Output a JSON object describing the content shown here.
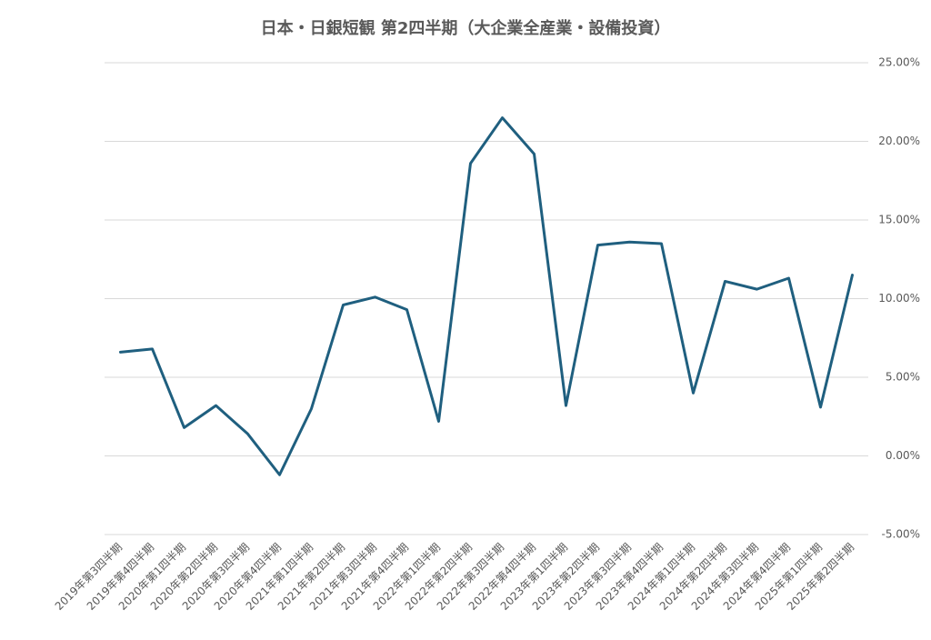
{
  "chart_data": {
    "type": "line",
    "title": "日本・日銀短観  第2四半期（大企業全産業・設備投資）",
    "categories": [
      "2019年第3四半期",
      "2019年第4四半期",
      "2020年第1四半期",
      "2020年第2四半期",
      "2020年第3四半期",
      "2020年第4四半期",
      "2021年第1四半期",
      "2021年第2四半期",
      "2021年第3四半期",
      "2021年第4四半期",
      "2022年第1四半期",
      "2022年第2四半期",
      "2022年第3四半期",
      "2022年第4四半期",
      "2023年第1四半期",
      "2023年第2四半期",
      "2023年第3四半期",
      "2023年第4四半期",
      "2024年第1四半期",
      "2024年第2四半期",
      "2024年第3四半期",
      "2024年第4四半期",
      "2025年第1四半期",
      "2025年第2四半期"
    ],
    "series": [
      {
        "color": "#1f5f7f",
        "values": [
          6.6,
          6.8,
          1.8,
          3.2,
          1.4,
          -1.2,
          3.0,
          9.6,
          10.1,
          9.3,
          2.2,
          18.6,
          21.5,
          19.2,
          3.2,
          13.4,
          13.6,
          13.5,
          4.0,
          11.1,
          10.6,
          11.3,
          3.1,
          11.5
        ]
      }
    ],
    "ylim": [
      -5,
      25
    ],
    "yticks": [
      {
        "value": -5,
        "label": "-5.00%"
      },
      {
        "value": 0,
        "label": "0.00%"
      },
      {
        "value": 5,
        "label": "5.00%"
      },
      {
        "value": 10,
        "label": "10.00%"
      },
      {
        "value": 15,
        "label": "15.00%"
      },
      {
        "value": 20,
        "label": "20.00%"
      },
      {
        "value": 25,
        "label": "25.00%"
      }
    ],
    "grid": true,
    "y_axis_side": "right"
  }
}
